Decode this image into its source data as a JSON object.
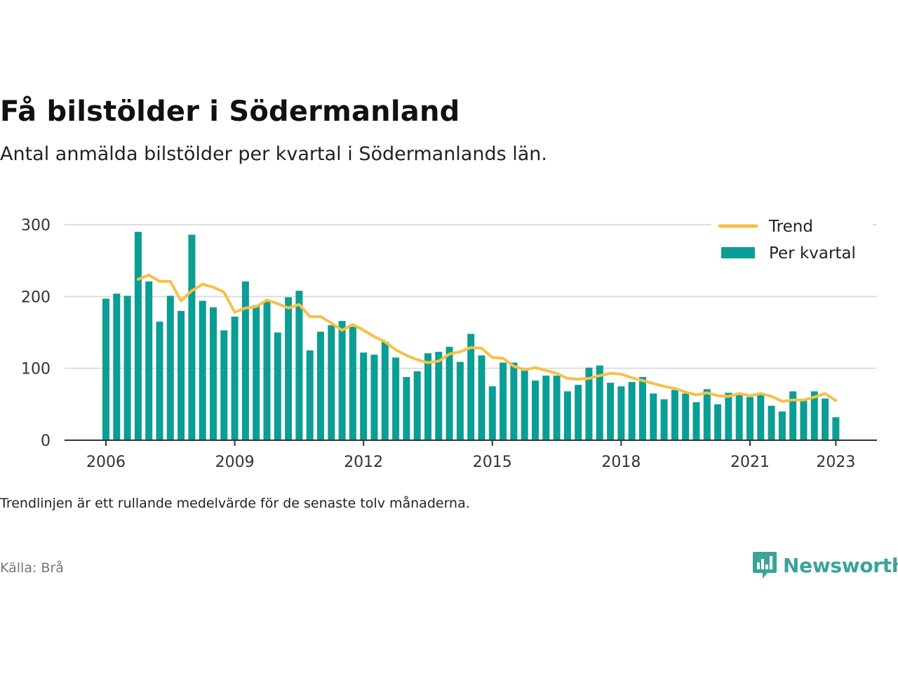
{
  "title": "Få bilstölder i Södermanland",
  "subtitle": "Antal anmälda bilstölder per kvartal i Södermanlands län.",
  "note": "Trendlinjen är ett rullande medelvärde för de senaste tolv månaderna.",
  "source": "Källa: Brå",
  "brand": {
    "name": "Newsworthy",
    "icon": "newsworthy-logo-icon"
  },
  "colors": {
    "bars": "#0a9e94",
    "trend": "#f7c04a",
    "grid": "#dddddd",
    "axis": "#333333",
    "brand": "#3aa39a"
  },
  "chart_data": {
    "type": "bar",
    "ylim": [
      0,
      300
    ],
    "yticks": [
      0,
      100,
      200,
      300
    ],
    "xticks": [
      "2006",
      "2009",
      "2012",
      "2015",
      "2018",
      "2021",
      "2023"
    ],
    "legend_position": "top-right",
    "grid": true,
    "categories": [
      "2006 Q1",
      "2006 Q2",
      "2006 Q3",
      "2006 Q4",
      "2007 Q1",
      "2007 Q2",
      "2007 Q3",
      "2007 Q4",
      "2008 Q1",
      "2008 Q2",
      "2008 Q3",
      "2008 Q4",
      "2009 Q1",
      "2009 Q2",
      "2009 Q3",
      "2009 Q4",
      "2010 Q1",
      "2010 Q2",
      "2010 Q3",
      "2010 Q4",
      "2011 Q1",
      "2011 Q2",
      "2011 Q3",
      "2011 Q4",
      "2012 Q1",
      "2012 Q2",
      "2012 Q3",
      "2012 Q4",
      "2013 Q1",
      "2013 Q2",
      "2013 Q3",
      "2013 Q4",
      "2014 Q1",
      "2014 Q2",
      "2014 Q3",
      "2014 Q4",
      "2015 Q1",
      "2015 Q2",
      "2015 Q3",
      "2015 Q4",
      "2016 Q1",
      "2016 Q2",
      "2016 Q3",
      "2016 Q4",
      "2017 Q1",
      "2017 Q2",
      "2017 Q3",
      "2017 Q4",
      "2018 Q1",
      "2018 Q2",
      "2018 Q3",
      "2018 Q4",
      "2019 Q1",
      "2019 Q2",
      "2019 Q3",
      "2019 Q4",
      "2020 Q1",
      "2020 Q2",
      "2020 Q3",
      "2020 Q4",
      "2021 Q1",
      "2021 Q2",
      "2021 Q3",
      "2021 Q4",
      "2022 Q1",
      "2022 Q2",
      "2022 Q3",
      "2022 Q4",
      "2023 Q1"
    ],
    "series": [
      {
        "name": "Per kvartal",
        "type": "bar",
        "values": [
          197,
          204,
          201,
          290,
          221,
          165,
          201,
          180,
          286,
          194,
          185,
          153,
          172,
          221,
          188,
          193,
          150,
          199,
          208,
          125,
          151,
          160,
          166,
          158,
          122,
          119,
          137,
          115,
          88,
          96,
          121,
          123,
          130,
          109,
          148,
          118,
          75,
          108,
          108,
          97,
          83,
          90,
          90,
          68,
          77,
          101,
          104,
          80,
          75,
          81,
          88,
          65,
          57,
          70,
          65,
          53,
          71,
          50,
          66,
          66,
          60,
          64,
          48,
          40,
          68,
          55,
          68,
          58,
          32
        ]
      },
      {
        "name": "Trend",
        "type": "line",
        "values": [
          null,
          null,
          null,
          224,
          230,
          221,
          221,
          194,
          208,
          217,
          213,
          206,
          178,
          184,
          186,
          195,
          190,
          184,
          189,
          172,
          172,
          163,
          153,
          161,
          153,
          144,
          137,
          126,
          118,
          112,
          108,
          110,
          120,
          123,
          129,
          128,
          115,
          114,
          103,
          98,
          101,
          97,
          93,
          86,
          85,
          86,
          90,
          93,
          92,
          87,
          83,
          79,
          75,
          72,
          67,
          63,
          66,
          62,
          61,
          65,
          62,
          65,
          61,
          54,
          56,
          56,
          60,
          65,
          55
        ]
      }
    ]
  }
}
